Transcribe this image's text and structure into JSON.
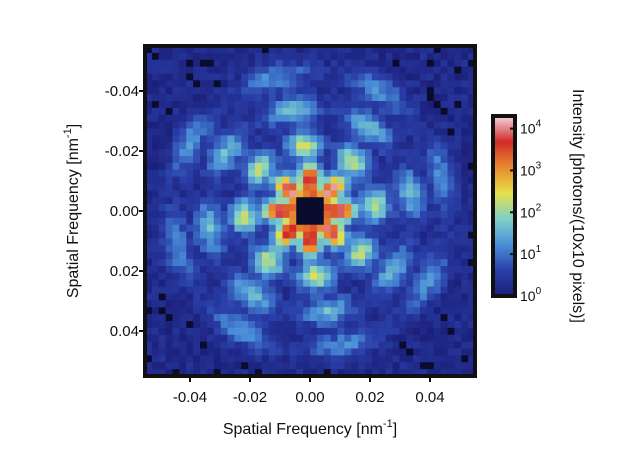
{
  "chart_data": {
    "type": "heatmap",
    "title": "",
    "xlabel": "Spatial Frequency [nm",
    "xlabel_sup": "-1",
    "xlabel_tail": "]",
    "ylabel": "Spatial Frequency [nm",
    "ylabel_sup": "-1",
    "ylabel_tail": "]",
    "xlim": [
      -0.055,
      0.055
    ],
    "ylim": [
      -0.055,
      0.055
    ],
    "y_axis_inverted": true,
    "x_ticks": [
      {
        "value": -0.04,
        "label": "-0.04"
      },
      {
        "value": -0.02,
        "label": "-0.02"
      },
      {
        "value": 0.0,
        "label": "0.00"
      },
      {
        "value": 0.02,
        "label": "0.02"
      },
      {
        "value": 0.04,
        "label": "0.04"
      }
    ],
    "y_ticks": [
      {
        "value": -0.04,
        "label": "-0.04"
      },
      {
        "value": -0.02,
        "label": "-0.02"
      },
      {
        "value": 0.0,
        "label": "0.00"
      },
      {
        "value": 0.02,
        "label": "0.02"
      },
      {
        "value": 0.04,
        "label": "0.04"
      }
    ],
    "grid_size": 48,
    "grid": false,
    "beamstop_half_width": 0.004,
    "colorbar": {
      "label": "Intensity [photons/(10x10 pixels)]",
      "scale": "log",
      "range": [
        1,
        20000
      ],
      "ticks": [
        {
          "value": 1,
          "base": "10",
          "exp": "0"
        },
        {
          "value": 10,
          "base": "10",
          "exp": "1"
        },
        {
          "value": 100,
          "base": "10",
          "exp": "2"
        },
        {
          "value": 1000,
          "base": "10",
          "exp": "3"
        },
        {
          "value": 10000,
          "base": "10",
          "exp": "4"
        }
      ],
      "colormap": [
        "#1b1f7a",
        "#2a3fa8",
        "#4a8fd8",
        "#7fd1c8",
        "#e6e04a",
        "#e98a2e",
        "#d12a2a",
        "#f4d8e0"
      ]
    },
    "pattern": {
      "description_free": true,
      "center_peak_log10": 4.2,
      "ring_radii": [
        0.011,
        0.022,
        0.034,
        0.046
      ],
      "ring_levels_log10": [
        3.0,
        2.1,
        1.4,
        1.0
      ],
      "symmetry_fold": 8,
      "background_log10": 0.2
    }
  }
}
